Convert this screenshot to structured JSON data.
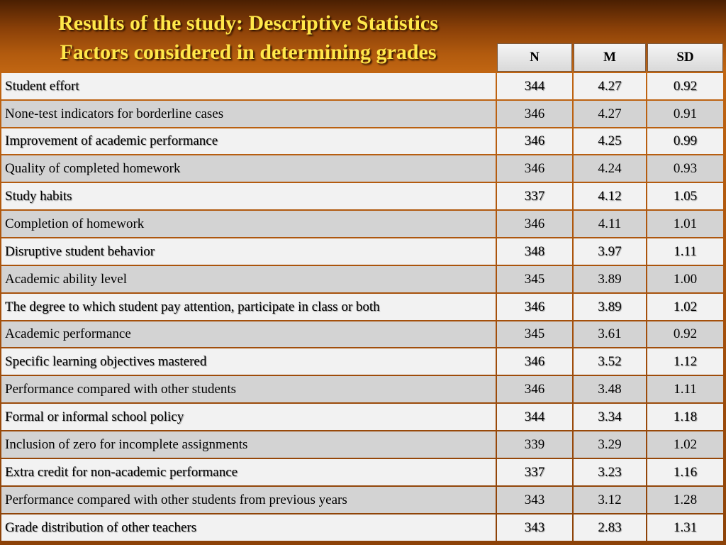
{
  "title": {
    "line1": "Results of the study: Descriptive Statistics",
    "line2": "Factors considered in determining grades"
  },
  "columns": {
    "n": "N",
    "m": "M",
    "sd": "SD"
  },
  "rows": [
    {
      "label": "Student effort",
      "n": "344",
      "m": "4.27",
      "sd": "0.92"
    },
    {
      "label": "None-test indicators for borderline cases",
      "n": "346",
      "m": "4.27",
      "sd": "0.91"
    },
    {
      "label": "Improvement of academic performance",
      "n": "346",
      "m": "4.25",
      "sd": "0.99"
    },
    {
      "label": "Quality of completed homework",
      "n": "346",
      "m": "4.24",
      "sd": "0.93"
    },
    {
      "label": "Study habits",
      "n": "337",
      "m": "4.12",
      "sd": "1.05"
    },
    {
      "label": "Completion of homework",
      "n": "346",
      "m": "4.11",
      "sd": "1.01"
    },
    {
      "label": "Disruptive student behavior",
      "n": "348",
      "m": "3.97",
      "sd": "1.11"
    },
    {
      "label": "Academic ability level",
      "n": "345",
      "m": "3.89",
      "sd": "1.00"
    },
    {
      "label": "The degree to which student pay attention, participate in class or both",
      "n": "346",
      "m": "3.89",
      "sd": "1.02"
    },
    {
      "label": "Academic performance",
      "n": "345",
      "m": "3.61",
      "sd": "0.92"
    },
    {
      "label": "Specific learning objectives mastered",
      "n": "346",
      "m": "3.52",
      "sd": "1.12"
    },
    {
      "label": "Performance compared with other students",
      "n": "346",
      "m": "3.48",
      "sd": "1.11"
    },
    {
      "label": "Formal or informal school policy",
      "n": "344",
      "m": "3.34",
      "sd": "1.18"
    },
    {
      "label": "Inclusion of zero for incomplete assignments",
      "n": "339",
      "m": "3.29",
      "sd": "1.02"
    },
    {
      "label": "Extra credit for non-academic performance",
      "n": "337",
      "m": "3.23",
      "sd": "1.16"
    },
    {
      "label": "Performance compared with other students from previous years",
      "n": "343",
      "m": "3.12",
      "sd": "1.28"
    },
    {
      "label": "Grade distribution of other teachers",
      "n": "343",
      "m": "2.83",
      "sd": "1.31"
    }
  ]
}
